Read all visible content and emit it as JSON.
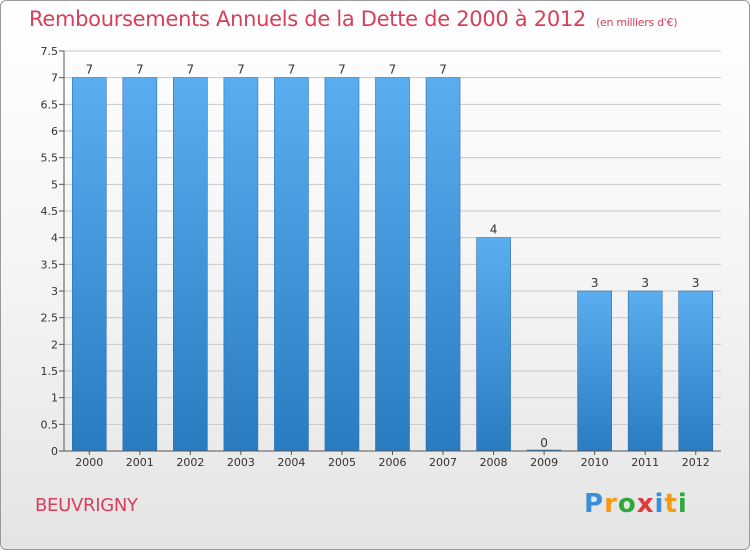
{
  "header": {
    "title": "Remboursements Annuels de la Dette de 2000 à 2012",
    "subtitle": "(en milliers d'€)"
  },
  "footer": {
    "commune": "BEUVRIGNY",
    "logo_letters": [
      "P",
      "r",
      "o",
      "x",
      "i",
      "t",
      "i"
    ],
    "logo_colors": [
      "#3a8fd8",
      "#f39c12",
      "#2eaa3c",
      "#e03a3a",
      "#3a8fd8",
      "#f39c12",
      "#2eaa3c"
    ]
  },
  "chart_data": {
    "type": "bar",
    "title": "Remboursements Annuels de la Dette de 2000 à 2012",
    "categories": [
      "2000",
      "2001",
      "2002",
      "2003",
      "2004",
      "2005",
      "2006",
      "2007",
      "2008",
      "2009",
      "2010",
      "2011",
      "2012"
    ],
    "values": [
      7,
      7,
      7,
      7,
      7,
      7,
      7,
      7,
      4,
      0,
      3,
      3,
      3
    ],
    "value_labels": [
      "7",
      "7",
      "7",
      "7",
      "7",
      "7",
      "7",
      "7",
      "4",
      "0",
      "3",
      "3",
      "3"
    ],
    "ylim": [
      0,
      7.5
    ],
    "yticks": [
      0,
      0.5,
      1,
      1.5,
      2,
      2.5,
      3,
      3.5,
      4,
      4.5,
      5,
      5.5,
      6,
      6.5,
      7,
      7.5
    ],
    "ytick_labels": [
      "0",
      "0.5",
      "1",
      "1.5",
      "2",
      "2.5",
      "3",
      "3.5",
      "4",
      "4.5",
      "5",
      "5.5",
      "6",
      "6.5",
      "7",
      "7.5"
    ],
    "xlabel": "",
    "ylabel": "",
    "grid": true,
    "bar_color_top": "#5aaef0",
    "bar_color_bottom": "#2a7cc0"
  }
}
